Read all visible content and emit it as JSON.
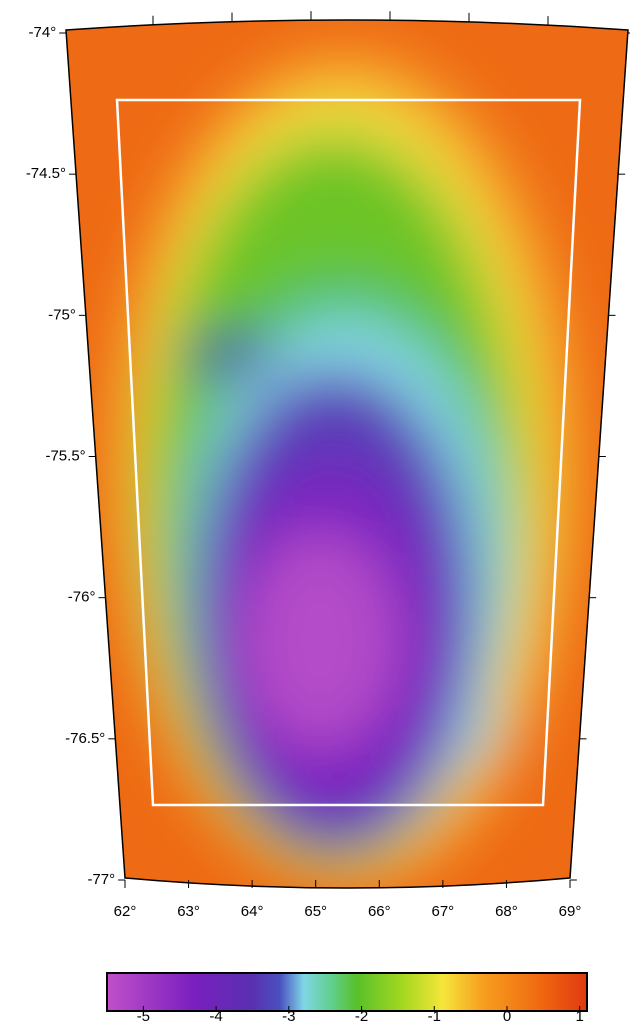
{
  "map": {
    "lat_ticks": [
      {
        "value": -74,
        "label": "-74°"
      },
      {
        "value": -74.5,
        "label": "-74.5°"
      },
      {
        "value": -75,
        "label": "-75°"
      },
      {
        "value": -75.5,
        "label": "-75.5°"
      },
      {
        "value": -76,
        "label": "-76°"
      },
      {
        "value": -76.5,
        "label": "-76.5°"
      },
      {
        "value": -77,
        "label": "-77°"
      }
    ],
    "lon_ticks": [
      {
        "value": 62,
        "label": "62°"
      },
      {
        "value": 63,
        "label": "63°"
      },
      {
        "value": 64,
        "label": "64°"
      },
      {
        "value": 65,
        "label": "65°"
      },
      {
        "value": 66,
        "label": "66°"
      },
      {
        "value": 67,
        "label": "67°"
      },
      {
        "value": 68,
        "label": "68°"
      },
      {
        "value": 69,
        "label": "69°"
      }
    ],
    "colorbar": {
      "range": [
        -5.5,
        1.1
      ],
      "ticks": [
        -5,
        -4,
        -3,
        -2,
        -1,
        0,
        1
      ]
    }
  }
}
